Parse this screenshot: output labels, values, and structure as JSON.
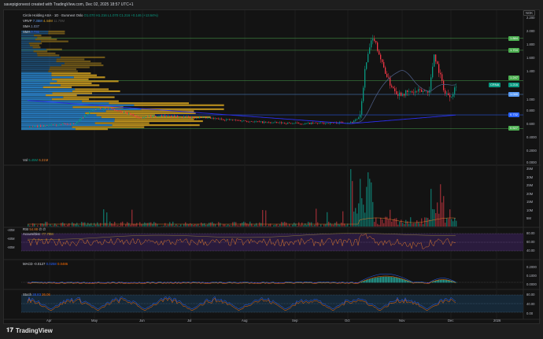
{
  "header": {
    "caption": "savepigionvest created with TradingView.com, Dec 02, 2025 18:57 UTC+1"
  },
  "legend": {
    "symbol": "Circle Holding ASA · 1D · Euronext Oslo",
    "ohlc": {
      "o": "O1.070",
      "h": "H1.216",
      "l": "L1.070",
      "c": "C1.216",
      "chg": "+0.146 (+13.64%)"
    },
    "vrvp": {
      "label": "VRVP",
      "v1": "7.35M",
      "v2": "4.44M",
      "v3": "11.79M"
    },
    "sma1": {
      "label": "SMA",
      "value": "1.037"
    },
    "sma2": {
      "label": "SMA",
      "value": "0.731"
    }
  },
  "price_axis": {
    "currency": "NOK",
    "ticks": [
      "2.200",
      "2.000",
      "1.800",
      "1.600",
      "1.400",
      "1.000",
      "0.800",
      "0.600",
      "0.4000",
      "0.2000"
    ]
  },
  "price_tags": [
    {
      "value": "1.884",
      "color": "#4caf50"
    },
    {
      "value": "1.704",
      "color": "#4caf50"
    },
    {
      "value": "1.247",
      "color": "#4caf50"
    },
    {
      "value": "1.216",
      "color": "#089981"
    },
    {
      "value": "1.040",
      "color": "#5b9cf6"
    },
    {
      "value": "0.732",
      "color": "#2962ff"
    },
    {
      "value": "0.527",
      "color": "#4caf50"
    }
  ],
  "last_tag": {
    "label": "CRNA"
  },
  "volume": {
    "label": "Vol",
    "v1": "5.45M",
    "v2": "6.31M",
    "ticks": [
      "0.0000",
      "35M",
      "30M",
      "25M",
      "20M",
      "15M",
      "10M",
      "5M"
    ]
  },
  "rsi": {
    "label": "RSI",
    "v1": "54.88",
    "v2": "∅",
    "v3": "∅",
    "sub_label": "Accum/Dist",
    "sub_value": "-77.78M",
    "ticks": [
      "80.00",
      "60.00",
      "40.00"
    ],
    "left_ticks": [
      "-40M",
      "-60M",
      "-80M"
    ]
  },
  "macd": {
    "label": "MACD",
    "v1": "-0.0127",
    "v2": "0.0258",
    "v3": "0.0486",
    "ticks": [
      "0.2000",
      "0.1000",
      "0.0000"
    ]
  },
  "stoch": {
    "label": "Stoch",
    "v1": "28.83",
    "v2": "26.06",
    "ticks": [
      "80.00",
      "40.00",
      "0.00"
    ]
  },
  "time_axis": [
    "Apr",
    "May",
    "Jun",
    "Jul",
    "Aug",
    "Sep",
    "Oct",
    "Nov",
    "Dec",
    "2026"
  ],
  "footer": {
    "brand": "TradingView"
  },
  "colors": {
    "up": "#089981",
    "down": "#f23645",
    "sma1": "#4a5a80",
    "sma2": "#2a2ef0",
    "vol_up": "#0f6b60",
    "vol_down": "#8a2a31",
    "rsi_bg": "#2a1b3d",
    "stoch_bg": "#162837"
  }
}
